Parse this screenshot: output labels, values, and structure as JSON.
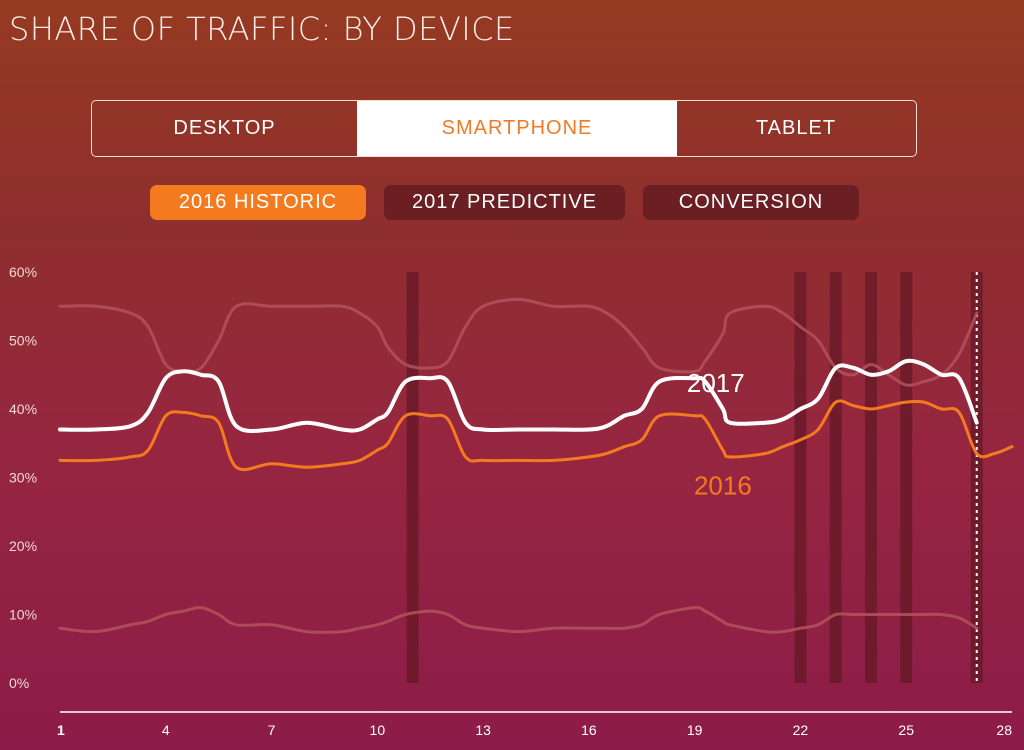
{
  "title": "SHARE OF TRAFFIC: BY DEVICE",
  "device_tabs": [
    {
      "label": "DESKTOP",
      "active": false
    },
    {
      "label": "SMARTPHONE",
      "active": true
    },
    {
      "label": "TABLET",
      "active": false
    }
  ],
  "view_pills": [
    {
      "label": "2016 HISTORIC",
      "active": true
    },
    {
      "label": "2017 PREDICTIVE",
      "active": false
    },
    {
      "label": "CONVERSION",
      "active": false
    }
  ],
  "colors": {
    "accent_orange": "#f47a1f",
    "line_2017": "#ffffff",
    "line_2016": "#f47a1f",
    "faint_lines": "#b0505a",
    "highlight_bars": "#6a1a28"
  },
  "chart_data": {
    "type": "line",
    "title": "",
    "xlabel": "",
    "ylabel": "",
    "ylim": [
      0,
      60
    ],
    "xlim": [
      1,
      28
    ],
    "y_ticks": [
      "0%",
      "10%",
      "20%",
      "30%",
      "40%",
      "50%",
      "60%"
    ],
    "x_ticks": [
      "1",
      "4",
      "7",
      "10",
      "13",
      "16",
      "19",
      "22",
      "25",
      "28"
    ],
    "highlight_days": [
      11,
      22,
      23,
      24,
      25,
      27
    ],
    "dotted_marker_day": 27,
    "series": [
      {
        "name": "2017",
        "style": "bold-white",
        "x": [
          1,
          2,
          3,
          3.5,
          4,
          4.5,
          5,
          5.5,
          6,
          7,
          8,
          9,
          9.5,
          10,
          10.3,
          10.8,
          11.5,
          12,
          12.5,
          13,
          14,
          15,
          16,
          16.5,
          17,
          17.5,
          18,
          19,
          19.3,
          19.8,
          20,
          21,
          21.5,
          22,
          22.5,
          23,
          23.5,
          24,
          24.5,
          25,
          25.5,
          26,
          26.5,
          27
        ],
        "values": [
          37,
          37,
          37.5,
          39.5,
          44.5,
          45.5,
          45,
          44,
          37.5,
          37,
          38,
          37,
          37,
          38.5,
          39.5,
          44,
          44.5,
          44,
          38,
          37,
          37,
          37,
          37,
          37.5,
          39,
          40,
          44,
          44.5,
          44,
          40,
          38,
          38,
          38.5,
          40,
          41.5,
          46,
          46,
          45,
          45.5,
          47,
          46.5,
          45,
          44.5,
          38
        ]
      },
      {
        "name": "2016",
        "style": "orange",
        "x": [
          1,
          2,
          3,
          3.5,
          4,
          4.5,
          5,
          5.5,
          6,
          7,
          8,
          9,
          9.5,
          10,
          10.3,
          10.8,
          11.5,
          12,
          12.5,
          13,
          14,
          15,
          16,
          16.5,
          17,
          17.5,
          18,
          19,
          19.3,
          19.8,
          20,
          21,
          21.5,
          22,
          22.5,
          23,
          23.5,
          24,
          24.5,
          25,
          25.5,
          26,
          26.5,
          27,
          27.5,
          28
        ],
        "values": [
          32.5,
          32.5,
          33,
          34,
          39,
          39.5,
          39,
          38,
          31.5,
          32,
          31.5,
          32,
          32.5,
          34,
          35,
          39,
          39,
          38.5,
          33,
          32.5,
          32.5,
          32.5,
          33,
          33.5,
          34.5,
          35.5,
          39,
          39,
          38.5,
          34,
          33,
          33.5,
          34.5,
          35.5,
          37,
          41,
          40.5,
          40,
          40.5,
          41,
          41,
          40,
          39.5,
          33.5,
          33.5,
          34.5
        ]
      },
      {
        "name": "",
        "style": "faint",
        "x": [
          1,
          2,
          3,
          3.5,
          4,
          4.5,
          5,
          5.5,
          6,
          7,
          8,
          9,
          9.5,
          10,
          10.3,
          10.8,
          11.5,
          12,
          12.5,
          13,
          14,
          15,
          16,
          16.5,
          17,
          17.5,
          18,
          19,
          19.3,
          19.8,
          20,
          21,
          21.5,
          22,
          22.5,
          23,
          23.5,
          24,
          24.5,
          25,
          25.5,
          26,
          26.5,
          27
        ],
        "values": [
          55,
          55,
          54,
          52,
          46.5,
          45.5,
          46,
          50,
          55,
          55,
          55,
          55,
          54,
          52,
          49,
          46.5,
          46,
          47,
          52,
          55,
          56,
          55,
          55,
          54,
          52,
          49,
          46,
          45.5,
          47,
          51,
          54,
          55,
          54,
          52,
          50,
          46,
          45,
          46.5,
          45,
          43.5,
          44,
          45,
          48,
          54
        ]
      },
      {
        "name": "",
        "style": "faint",
        "x": [
          1,
          2,
          3,
          3.5,
          4,
          4.5,
          5,
          5.5,
          6,
          7,
          8,
          9,
          9.5,
          10,
          10.3,
          10.8,
          11.5,
          12,
          12.5,
          13,
          14,
          15,
          16,
          16.5,
          17,
          17.5,
          18,
          19,
          19.3,
          19.8,
          20,
          21,
          21.5,
          22,
          22.5,
          23,
          23.5,
          24,
          24.5,
          25,
          25.5,
          26,
          26.5,
          27
        ],
        "values": [
          8,
          7.5,
          8.5,
          9,
          10,
          10.5,
          11,
          10,
          8.5,
          8.5,
          7.5,
          7.5,
          8,
          8.5,
          9,
          10,
          10.5,
          10,
          8.5,
          8,
          7.5,
          8,
          8,
          8,
          8,
          8.5,
          10,
          11,
          10.5,
          9,
          8.5,
          7.5,
          7.5,
          8,
          8.5,
          10,
          10,
          10,
          10,
          10,
          10,
          10,
          9.5,
          8
        ]
      }
    ],
    "annotations": [
      {
        "text": "2017",
        "x": 19.6,
        "y": 42.5,
        "series": "2017"
      },
      {
        "text": "2016",
        "x": 19.8,
        "y": 27.5,
        "series": "2016"
      }
    ]
  }
}
